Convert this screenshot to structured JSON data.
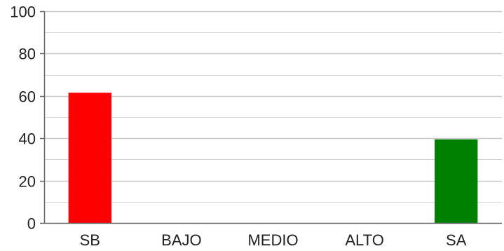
{
  "chart_data": {
    "type": "bar",
    "title": "",
    "xlabel": "",
    "ylabel": "",
    "categories": [
      "SB",
      "BAJO",
      "MEDIO",
      "ALTO",
      "SA"
    ],
    "values": [
      61.5,
      0,
      0,
      0,
      39.5
    ],
    "bar_colors": [
      "#ff0000",
      "#ff0000",
      "#ff0000",
      "#ff0000",
      "#008000"
    ],
    "ylim": [
      0,
      100
    ],
    "y_ticks": [
      0,
      20,
      40,
      60,
      80,
      100
    ],
    "minor_grid_step": 10,
    "grid": true,
    "legend": "none",
    "colors": {
      "axis": "#666666",
      "major_grid": "#c8c8c8",
      "minor_grid": "#d8d8d8",
      "label": "#222222"
    }
  }
}
